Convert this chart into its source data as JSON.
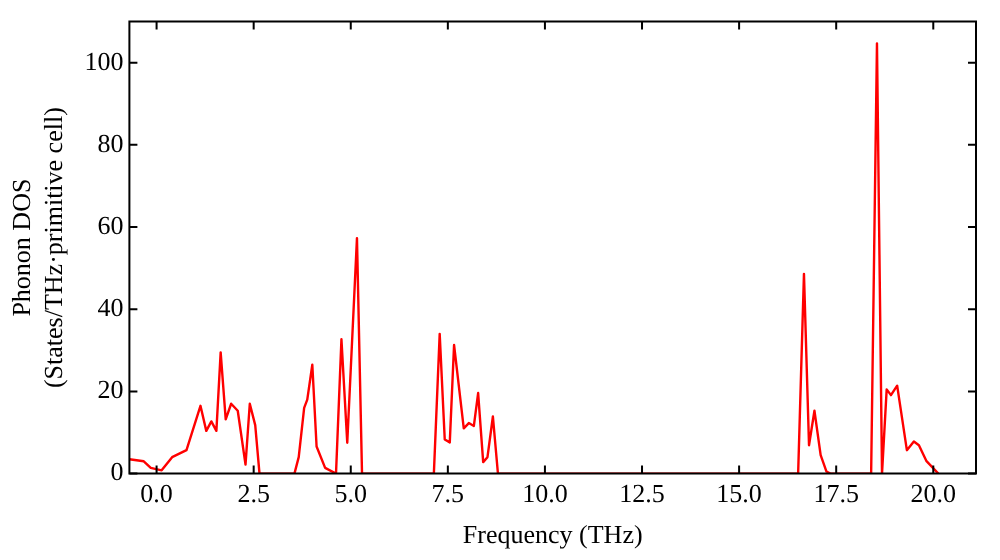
{
  "chart_data": {
    "type": "line",
    "xlabel": "Frequency (THz)",
    "ylabel": "Phonon DOS\n(States/THz·primitive cell)",
    "xlim": [
      -0.7,
      21.1
    ],
    "ylim": [
      0,
      110
    ],
    "xticks": [
      {
        "value": 0,
        "label": "0.0"
      },
      {
        "value": 2.5,
        "label": "2.5"
      },
      {
        "value": 5,
        "label": "5.0"
      },
      {
        "value": 7.5,
        "label": "7.5"
      },
      {
        "value": 10,
        "label": "10.0"
      },
      {
        "value": 12.5,
        "label": "12.5"
      },
      {
        "value": 15,
        "label": "15.0"
      },
      {
        "value": 17.5,
        "label": "17.5"
      },
      {
        "value": 20,
        "label": "20.0"
      }
    ],
    "yticks": [
      0,
      20,
      40,
      60,
      80,
      100
    ],
    "grid": false,
    "legend": false,
    "marker": "none",
    "line_style": "solid",
    "series": [
      {
        "color": "#ff0000",
        "x": [
          -0.7,
          -0.33,
          -0.15,
          0.13,
          0.4,
          0.77,
          1.13,
          1.28,
          1.41,
          1.54,
          1.65,
          1.78,
          1.92,
          2.09,
          2.29,
          2.4,
          2.54,
          2.65,
          3.55,
          3.66,
          3.8,
          3.88,
          4.01,
          4.12,
          4.34,
          4.62,
          4.76,
          4.91,
          5.16,
          5.29,
          7.14,
          7.29,
          7.42,
          7.55,
          7.66,
          7.91,
          8.04,
          8.17,
          8.28,
          8.41,
          8.52,
          8.66,
          8.79,
          16.52,
          16.67,
          16.8,
          16.94,
          17.1,
          17.25,
          17.35,
          18.4,
          18.55,
          18.68,
          18.8,
          18.91,
          19.07,
          19.32,
          19.5,
          19.63,
          19.82,
          20.13
        ],
        "values": [
          3.5,
          3,
          1.4,
          0.8,
          4,
          5.7,
          16.5,
          10.4,
          12.7,
          10.4,
          29.5,
          13.2,
          17,
          15.3,
          2.2,
          17,
          11.8,
          0,
          0,
          4,
          16,
          18,
          26.5,
          6.6,
          1.4,
          0,
          32.7,
          7.5,
          57.3,
          0,
          0,
          34,
          8.3,
          7.6,
          31.3,
          11,
          12.3,
          11.6,
          19.6,
          2.8,
          4,
          13.9,
          0,
          0,
          48.6,
          6.9,
          15.3,
          4.5,
          0.5,
          0,
          0,
          104.7,
          0,
          20.5,
          19.1,
          21.4,
          5.7,
          7.8,
          6.9,
          3.1,
          0
        ]
      }
    ]
  }
}
